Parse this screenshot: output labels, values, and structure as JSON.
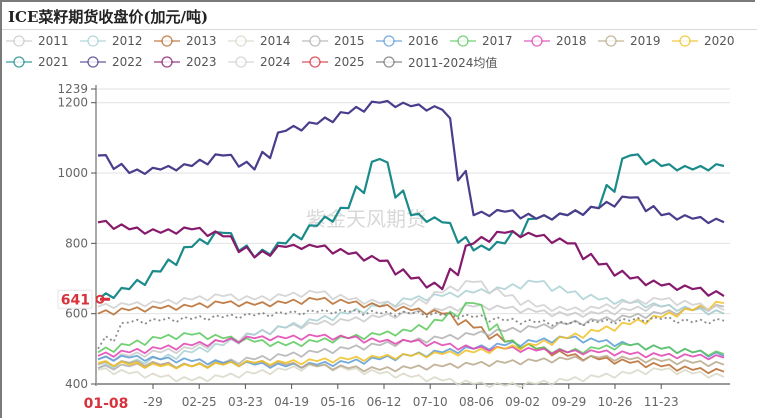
{
  "title": "ICE菜籽期货收盘价(加元/吨)",
  "watermark": "紫金天风期货",
  "chart_data": {
    "type": "line",
    "title": "ICE菜籽期货收盘价(加元/吨)",
    "xlabel": "",
    "ylabel": "",
    "ylim": [
      400,
      1239
    ],
    "yticks": [
      "400",
      "600",
      "800",
      "1000",
      "1200",
      "1239"
    ],
    "ytick_values": [
      400,
      600,
      800,
      1000,
      1200,
      1239
    ],
    "highlight_y": {
      "label": "641",
      "value": 641
    },
    "highlight_x": {
      "label": "01-08"
    },
    "xticks": [
      "-29",
      "02-25",
      "03-23",
      "04-19",
      "05-16",
      "06-12",
      "07-10",
      "08-06",
      "09-02",
      "09-29",
      "10-26",
      "11-23"
    ],
    "grid": true,
    "legend_position": "top",
    "series": [
      {
        "name": "2011",
        "color": "#c9c9c9",
        "values": [
          470,
          480,
          490,
          500,
          520,
          540,
          560,
          570,
          580,
          590,
          600,
          610,
          620,
          615,
          605,
          595,
          600,
          610,
          620,
          610,
          600
        ]
      },
      {
        "name": "2012",
        "color": "#a8d0d4",
        "values": [
          445,
          460,
          470,
          490,
          510,
          540,
          560,
          580,
          600,
          620,
          640,
          650,
          660,
          670,
          690,
          660,
          640,
          630,
          620,
          610,
          600
        ]
      },
      {
        "name": "2013",
        "color": "#b5682a",
        "values": [
          600,
          610,
          615,
          620,
          630,
          625,
          630,
          640,
          630,
          620,
          610,
          600,
          560,
          520,
          500,
          480,
          470,
          460,
          450,
          440,
          435
        ]
      },
      {
        "name": "2014",
        "color": "#d8d8c8",
        "values": [
          440,
          430,
          420,
          410,
          420,
          430,
          440,
          450,
          440,
          430,
          420,
          410,
          400,
          395,
          400,
          410,
          420,
          430,
          440,
          430,
          420
        ]
      },
      {
        "name": "2015",
        "color": "#b0b0b0",
        "values": [
          445,
          450,
          455,
          450,
          460,
          470,
          480,
          490,
          500,
          510,
          520,
          530,
          540,
          550,
          560,
          570,
          580,
          590,
          600,
          610,
          620
        ]
      },
      {
        "name": "2016",
        "color": "#5b9bd5",
        "values": [
          470,
          475,
          470,
          465,
          460,
          455,
          450,
          455,
          460,
          470,
          480,
          490,
          500,
          510,
          520,
          530,
          520,
          510,
          500,
          490,
          480
        ]
      },
      {
        "name": "2017",
        "color": "#5cc85c",
        "values": [
          490,
          510,
          530,
          540,
          530,
          520,
          510,
          520,
          530,
          540,
          550,
          580,
          630,
          520,
          500,
          490,
          500,
          510,
          500,
          490,
          485
        ]
      },
      {
        "name": "2018",
        "color": "#e040b0",
        "values": [
          480,
          490,
          500,
          510,
          520,
          530,
          530,
          535,
          530,
          520,
          520,
          510,
          500,
          500,
          495,
          490,
          490,
          485,
          480,
          478,
          475
        ]
      },
      {
        "name": "2019",
        "color": "#b7a78a",
        "values": [
          455,
          460,
          455,
          450,
          455,
          460,
          455,
          450,
          445,
          440,
          445,
          450,
          455,
          460,
          465,
          470,
          475,
          470,
          465,
          460,
          455
        ]
      },
      {
        "name": "2020",
        "color": "#f0c020",
        "values": [
          460,
          455,
          450,
          450,
          455,
          460,
          460,
          465,
          470,
          475,
          480,
          485,
          490,
          500,
          510,
          530,
          550,
          570,
          590,
          610,
          630
        ]
      },
      {
        "name": "2021",
        "color": "#1a8a8a",
        "values": [
          640,
          670,
          720,
          790,
          830,
          760,
          800,
          850,
          900,
          1040,
          880,
          860,
          780,
          800,
          870,
          880,
          900,
          1050,
          1020,
          1010,
          1020
        ]
      },
      {
        "name": "2022",
        "color": "#4a3d8c",
        "values": [
          1050,
          1000,
          1010,
          1020,
          1050,
          1010,
          1120,
          1140,
          1170,
          1200,
          1190,
          1180,
          880,
          890,
          870,
          880,
          900,
          930,
          880,
          870,
          860
        ]
      },
      {
        "name": "2023",
        "color": "#861a6c",
        "values": [
          860,
          840,
          830,
          840,
          820,
          760,
          790,
          790,
          770,
          750,
          700,
          670,
          800,
          830,
          820,
          800,
          740,
          700,
          680,
          670,
          650
        ]
      },
      {
        "name": "2024",
        "color": "#cfcfcf",
        "values": [
          620,
          625,
          630,
          640,
          650,
          640,
          650,
          660,
          640,
          630,
          620,
          660,
          690,
          650,
          620,
          610,
          615,
          630,
          640,
          625,
          610
        ]
      },
      {
        "name": "2025",
        "color": "#d8323c",
        "values": [
          641
        ]
      },
      {
        "name": "2011-2024均值",
        "color": "#777777",
        "dashed": true,
        "values": [
          500,
          575,
          580,
          585,
          590,
          595,
          600,
          605,
          605,
          600,
          600,
          595,
          590,
          580,
          575,
          570,
          575,
          580,
          585,
          575,
          580
        ]
      }
    ]
  }
}
